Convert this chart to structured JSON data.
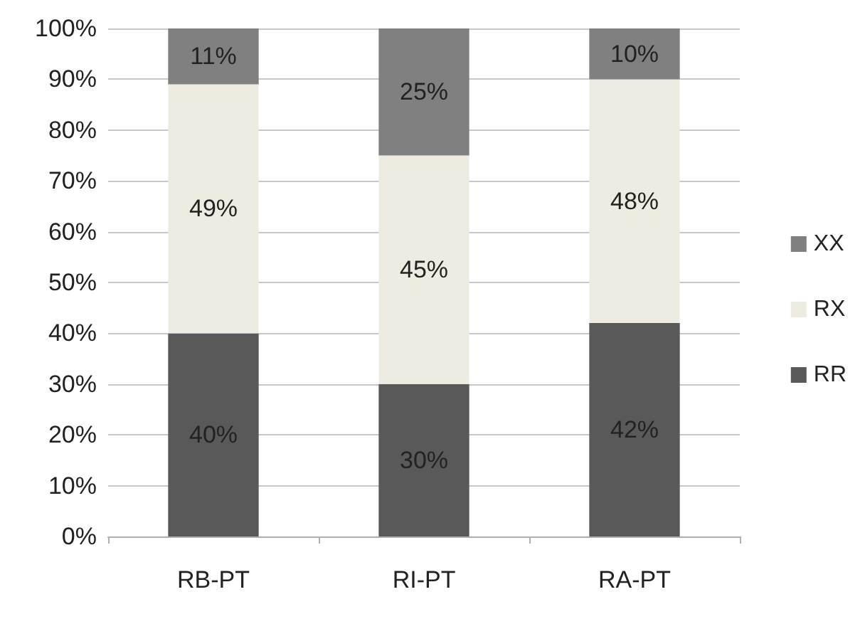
{
  "chart_data": {
    "type": "bar",
    "stacked": true,
    "categories": [
      "RB-PT",
      "RI-PT",
      "RA-PT"
    ],
    "series": [
      {
        "name": "RR",
        "color": "#595959",
        "values": [
          40,
          30,
          42
        ],
        "value_labels": [
          "40%",
          "30%",
          "42%"
        ]
      },
      {
        "name": "RX",
        "color": "#eeece1",
        "values": [
          49,
          45,
          48
        ],
        "value_labels": [
          "49%",
          "45%",
          "48%"
        ]
      },
      {
        "name": "XX",
        "color": "#808080",
        "values": [
          11,
          25,
          10
        ],
        "value_labels": [
          "11%",
          "25%",
          "10%"
        ]
      }
    ],
    "ylim": [
      0,
      100
    ],
    "yticks": [
      {
        "value": 0,
        "label": "0%"
      },
      {
        "value": 10,
        "label": "10%"
      },
      {
        "value": 20,
        "label": "20%"
      },
      {
        "value": 30,
        "label": "30%"
      },
      {
        "value": 40,
        "label": "40%"
      },
      {
        "value": 50,
        "label": "50%"
      },
      {
        "value": 60,
        "label": "60%"
      },
      {
        "value": 70,
        "label": "70%"
      },
      {
        "value": 80,
        "label": "80%"
      },
      {
        "value": 90,
        "label": "90%"
      },
      {
        "value": 100,
        "label": "100%"
      }
    ],
    "grid": "y",
    "legend": "right"
  }
}
